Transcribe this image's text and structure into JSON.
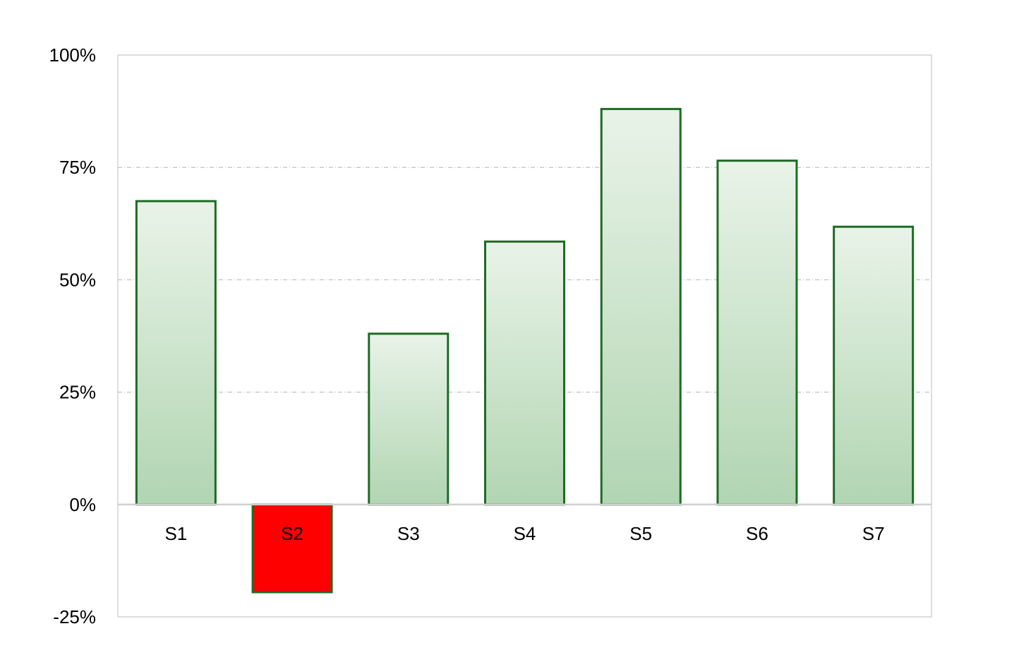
{
  "chart_data": {
    "type": "bar",
    "categories": [
      "S1",
      "S2",
      "S3",
      "S4",
      "S5",
      "S6",
      "S7"
    ],
    "values": [
      0.675,
      -0.195,
      0.38,
      0.585,
      0.88,
      0.765,
      0.618
    ],
    "ylim": [
      -0.25,
      1.0
    ],
    "yticks": [
      -0.25,
      0,
      0.25,
      0.5,
      0.75,
      1.0
    ],
    "ytick_labels": [
      "-25%",
      "0%",
      "25%",
      "50%",
      "75%",
      "100%"
    ],
    "grid": true,
    "legend": "none",
    "colors": {
      "positive_border": "#1e6b24",
      "positive_fill_top": "#e9f3e8",
      "positive_fill_bottom": "#b1d5b2",
      "negative_fill": "#ff0000",
      "negative_border": "#1e6b24",
      "gridline": "#b3b3b3",
      "frame": "#c8c8c8",
      "zero_line": "#d0d0d0"
    }
  }
}
